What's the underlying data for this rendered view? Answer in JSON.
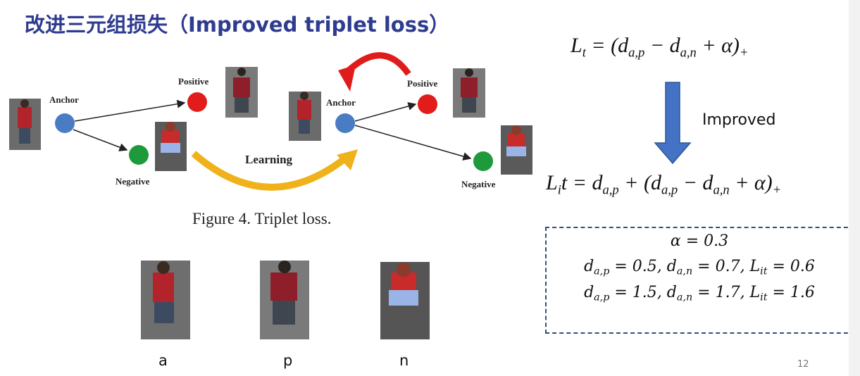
{
  "title": "改进三元组损失（Improved triplet loss）",
  "figure": {
    "anchor_left": "Anchor",
    "positive_left": "Positive",
    "negative_left": "Negative",
    "learning": "Learning",
    "anchor_right": "Anchor",
    "positive_right": "Positive",
    "negative_right": "Negative",
    "caption": "Figure 4. Triplet loss."
  },
  "samples": [
    "a",
    "p",
    "n"
  ],
  "formula_original": [
    "L",
    "t",
    " = (d",
    "a,p",
    " − d",
    "a,n",
    " + α)",
    "+"
  ],
  "arrow_label": "Improved",
  "formula_improved": [
    "L",
    "i",
    "t = d",
    "a,p",
    " + (d",
    "a,p",
    " − d",
    "a,n",
    " + α)",
    "+"
  ],
  "example": {
    "alpha": [
      "α = 0.3"
    ],
    "case_1": [
      "d",
      "a,p",
      " = 0.5, d",
      "a,n",
      " = 0.7, L",
      "it",
      " = 0.6"
    ],
    "case_2": [
      "d",
      "a,p",
      " = 1.5, d",
      "a,n",
      " = 1.7, L",
      "it",
      " = 1.6"
    ]
  },
  "page_number": "12"
}
